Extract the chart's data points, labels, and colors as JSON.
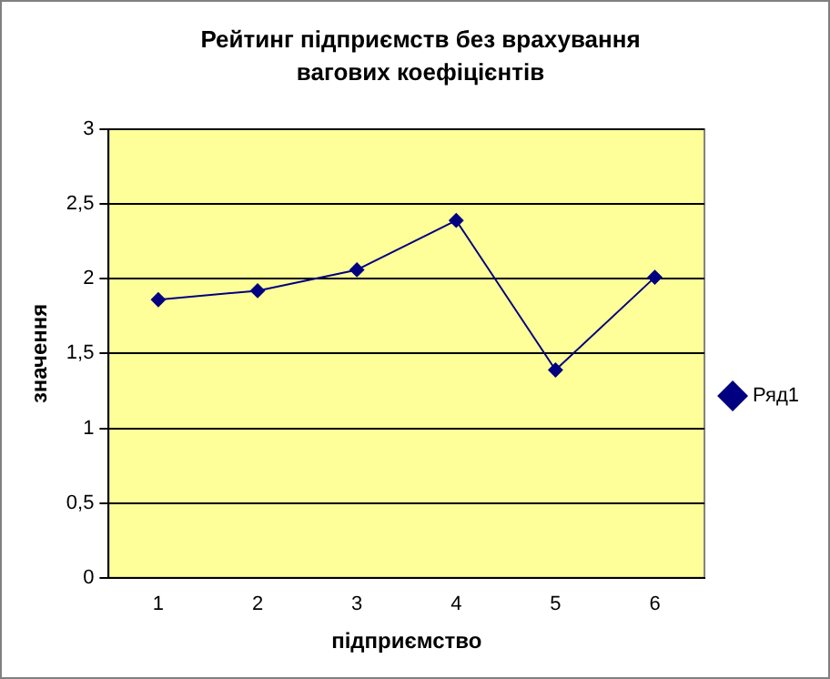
{
  "chart_data": {
    "type": "line",
    "title": "Рейтинг підприємств без врахування вагових коефіцієнтів",
    "xlabel": "підприємство",
    "ylabel": "значення",
    "categories": [
      "1",
      "2",
      "3",
      "4",
      "5",
      "6"
    ],
    "series": [
      {
        "name": "Ряд1",
        "color": "#000080",
        "values": [
          1.86,
          1.92,
          2.06,
          2.39,
          1.39,
          2.01
        ]
      }
    ],
    "ylim": [
      0,
      3
    ],
    "yticks": [
      0,
      {
        "value": 0.5,
        "label": "0,5"
      },
      1,
      {
        "value": 1.5,
        "label": "1,5"
      },
      2,
      {
        "value": 2.5,
        "label": "2,5"
      },
      3
    ],
    "grid": "y",
    "legend": "right",
    "marker": "diamond",
    "line_style": "solid"
  }
}
